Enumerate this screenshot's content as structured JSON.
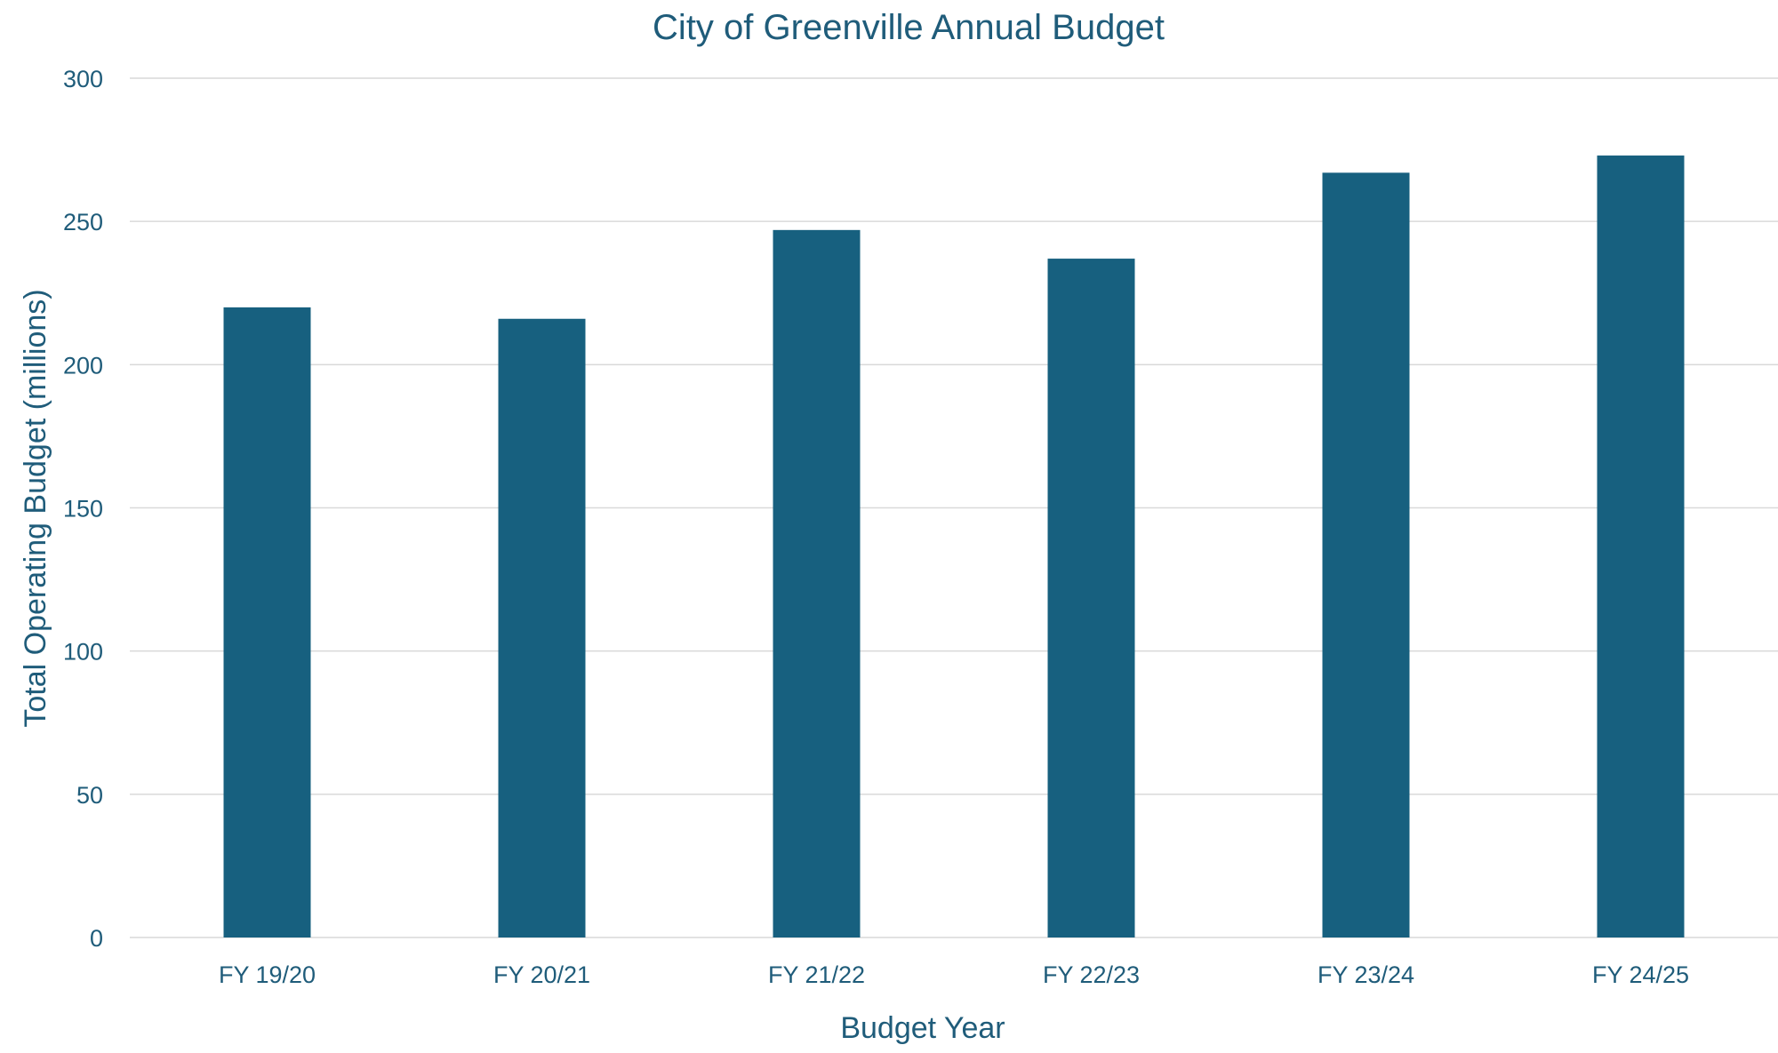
{
  "chart_data": {
    "type": "bar",
    "title": "City of Greenville Annual Budget",
    "xlabel": "Budget Year",
    "ylabel": "Total Operating Budget (millions)",
    "categories": [
      "FY 19/20",
      "FY 20/21",
      "FY 21/22",
      "FY 22/23",
      "FY 23/24",
      "FY 24/25"
    ],
    "values": [
      220,
      216,
      247,
      237,
      267,
      273
    ],
    "ylim": [
      0,
      300
    ],
    "yticks": [
      "0",
      "50",
      "100",
      "150",
      "200",
      "250",
      "300"
    ],
    "grid": true,
    "legend": "none",
    "bar_color": "#17607f"
  }
}
